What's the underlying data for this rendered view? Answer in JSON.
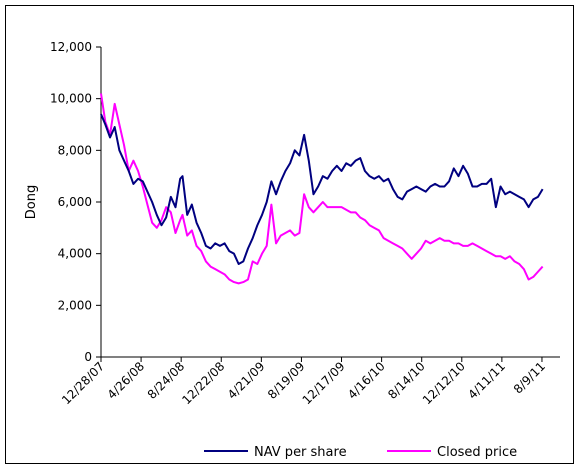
{
  "chart_data": {
    "type": "line",
    "ylabel": "Dong",
    "xlabel": "",
    "ylim": [
      0,
      12000
    ],
    "yticks": [
      0,
      2000,
      4000,
      6000,
      8000,
      10000,
      12000
    ],
    "ytick_labels": [
      "0",
      "2,000",
      "4,000",
      "6,000",
      "8,000",
      "10,000",
      "12,000"
    ],
    "xticks": [
      "12/28/07",
      "4/26/08",
      "8/24/08",
      "12/22/08",
      "4/21/09",
      "8/19/09",
      "12/17/09",
      "4/16/10",
      "8/14/10",
      "12/12/10",
      "4/11/11",
      "8/9/11"
    ],
    "xlim": [
      "12/28/07",
      "10/2/11"
    ],
    "grid": false,
    "legend_position": "bottom",
    "series": [
      {
        "name": "NAV per share",
        "color": "#000080",
        "points": [
          [
            "12/28/07",
            9400
          ],
          [
            "1/10/08",
            9000
          ],
          [
            "1/24/08",
            8500
          ],
          [
            "2/7/08",
            8900
          ],
          [
            "2/21/08",
            8000
          ],
          [
            "3/6/08",
            7600
          ],
          [
            "3/20/08",
            7200
          ],
          [
            "4/3/08",
            6700
          ],
          [
            "4/17/08",
            6900
          ],
          [
            "5/1/08",
            6800
          ],
          [
            "5/15/08",
            6400
          ],
          [
            "5/29/08",
            6000
          ],
          [
            "6/12/08",
            5500
          ],
          [
            "6/26/08",
            5100
          ],
          [
            "7/10/08",
            5400
          ],
          [
            "7/24/08",
            6200
          ],
          [
            "8/7/08",
            5800
          ],
          [
            "8/21/08",
            6900
          ],
          [
            "8/28/08",
            7000
          ],
          [
            "9/11/08",
            5500
          ],
          [
            "9/25/08",
            5900
          ],
          [
            "10/9/08",
            5200
          ],
          [
            "10/23/08",
            4800
          ],
          [
            "11/6/08",
            4300
          ],
          [
            "11/20/08",
            4200
          ],
          [
            "12/4/08",
            4400
          ],
          [
            "12/18/08",
            4300
          ],
          [
            "1/1/09",
            4400
          ],
          [
            "1/15/09",
            4100
          ],
          [
            "1/29/09",
            4000
          ],
          [
            "2/12/09",
            3600
          ],
          [
            "2/26/09",
            3700
          ],
          [
            "3/12/09",
            4200
          ],
          [
            "3/26/09",
            4600
          ],
          [
            "4/9/09",
            5100
          ],
          [
            "4/23/09",
            5500
          ],
          [
            "5/7/09",
            6000
          ],
          [
            "5/21/09",
            6800
          ],
          [
            "6/4/09",
            6300
          ],
          [
            "6/18/09",
            6800
          ],
          [
            "7/2/09",
            7200
          ],
          [
            "7/16/09",
            7500
          ],
          [
            "7/30/09",
            8000
          ],
          [
            "8/13/09",
            7800
          ],
          [
            "8/27/09",
            8600
          ],
          [
            "9/10/09",
            7600
          ],
          [
            "9/24/09",
            6300
          ],
          [
            "10/8/09",
            6600
          ],
          [
            "10/22/09",
            7000
          ],
          [
            "11/5/09",
            6900
          ],
          [
            "11/19/09",
            7200
          ],
          [
            "12/3/09",
            7400
          ],
          [
            "12/17/09",
            7200
          ],
          [
            "12/31/09",
            7500
          ],
          [
            "1/14/10",
            7400
          ],
          [
            "1/28/10",
            7600
          ],
          [
            "2/11/10",
            7700
          ],
          [
            "2/25/10",
            7200
          ],
          [
            "3/11/10",
            7000
          ],
          [
            "3/25/10",
            6900
          ],
          [
            "4/8/10",
            7000
          ],
          [
            "4/22/10",
            6800
          ],
          [
            "5/6/10",
            6900
          ],
          [
            "5/20/10",
            6500
          ],
          [
            "6/3/10",
            6200
          ],
          [
            "6/17/10",
            6100
          ],
          [
            "7/1/10",
            6400
          ],
          [
            "7/15/10",
            6500
          ],
          [
            "7/29/10",
            6600
          ],
          [
            "8/12/10",
            6500
          ],
          [
            "8/26/10",
            6400
          ],
          [
            "9/9/10",
            6600
          ],
          [
            "9/23/10",
            6700
          ],
          [
            "10/7/10",
            6600
          ],
          [
            "10/21/10",
            6600
          ],
          [
            "11/4/10",
            6800
          ],
          [
            "11/18/10",
            7300
          ],
          [
            "12/2/10",
            7000
          ],
          [
            "12/16/10",
            7400
          ],
          [
            "12/30/10",
            7100
          ],
          [
            "1/13/11",
            6600
          ],
          [
            "1/27/11",
            6600
          ],
          [
            "2/10/11",
            6700
          ],
          [
            "2/24/11",
            6700
          ],
          [
            "3/10/11",
            6900
          ],
          [
            "3/24/11",
            5800
          ],
          [
            "4/7/11",
            6600
          ],
          [
            "4/21/11",
            6300
          ],
          [
            "5/5/11",
            6400
          ],
          [
            "5/19/11",
            6300
          ],
          [
            "6/2/11",
            6200
          ],
          [
            "6/16/11",
            6100
          ],
          [
            "6/30/11",
            5800
          ],
          [
            "7/14/11",
            6100
          ],
          [
            "7/28/11",
            6200
          ],
          [
            "8/11/11",
            6500
          ]
        ]
      },
      {
        "name": "Closed price",
        "color": "#ff00ff",
        "points": [
          [
            "12/28/07",
            10200
          ],
          [
            "1/10/08",
            9100
          ],
          [
            "1/24/08",
            8600
          ],
          [
            "2/7/08",
            9800
          ],
          [
            "2/21/08",
            9000
          ],
          [
            "3/6/08",
            8200
          ],
          [
            "3/20/08",
            7200
          ],
          [
            "4/3/08",
            7600
          ],
          [
            "4/17/08",
            7200
          ],
          [
            "5/1/08",
            6600
          ],
          [
            "5/15/08",
            5900
          ],
          [
            "5/29/08",
            5200
          ],
          [
            "6/12/08",
            5000
          ],
          [
            "6/26/08",
            5300
          ],
          [
            "7/10/08",
            5800
          ],
          [
            "7/24/08",
            5600
          ],
          [
            "8/7/08",
            4800
          ],
          [
            "8/21/08",
            5300
          ],
          [
            "8/28/08",
            5500
          ],
          [
            "9/11/08",
            4700
          ],
          [
            "9/25/08",
            4900
          ],
          [
            "10/9/08",
            4300
          ],
          [
            "10/23/08",
            4100
          ],
          [
            "11/6/08",
            3700
          ],
          [
            "11/20/08",
            3500
          ],
          [
            "12/4/08",
            3400
          ],
          [
            "12/18/08",
            3300
          ],
          [
            "1/1/09",
            3200
          ],
          [
            "1/15/09",
            3000
          ],
          [
            "1/29/09",
            2900
          ],
          [
            "2/12/09",
            2850
          ],
          [
            "2/26/09",
            2900
          ],
          [
            "3/12/09",
            3000
          ],
          [
            "3/26/09",
            3700
          ],
          [
            "4/9/09",
            3600
          ],
          [
            "4/23/09",
            4000
          ],
          [
            "5/7/09",
            4300
          ],
          [
            "5/21/09",
            5900
          ],
          [
            "6/4/09",
            4400
          ],
          [
            "6/18/09",
            4700
          ],
          [
            "7/2/09",
            4800
          ],
          [
            "7/16/09",
            4900
          ],
          [
            "7/30/09",
            4700
          ],
          [
            "8/13/09",
            4800
          ],
          [
            "8/27/09",
            6300
          ],
          [
            "9/10/09",
            5800
          ],
          [
            "9/24/09",
            5600
          ],
          [
            "10/8/09",
            5800
          ],
          [
            "10/22/09",
            6000
          ],
          [
            "11/5/09",
            5800
          ],
          [
            "11/19/09",
            5800
          ],
          [
            "12/3/09",
            5800
          ],
          [
            "12/17/09",
            5800
          ],
          [
            "12/31/09",
            5700
          ],
          [
            "1/14/10",
            5600
          ],
          [
            "1/28/10",
            5600
          ],
          [
            "2/11/10",
            5400
          ],
          [
            "2/25/10",
            5300
          ],
          [
            "3/11/10",
            5100
          ],
          [
            "3/25/10",
            5000
          ],
          [
            "4/8/10",
            4900
          ],
          [
            "4/22/10",
            4600
          ],
          [
            "5/6/10",
            4500
          ],
          [
            "5/20/10",
            4400
          ],
          [
            "6/3/10",
            4300
          ],
          [
            "6/17/10",
            4200
          ],
          [
            "7/1/10",
            4000
          ],
          [
            "7/15/10",
            3800
          ],
          [
            "7/29/10",
            4000
          ],
          [
            "8/12/10",
            4200
          ],
          [
            "8/26/10",
            4500
          ],
          [
            "9/9/10",
            4400
          ],
          [
            "9/23/10",
            4500
          ],
          [
            "10/7/10",
            4600
          ],
          [
            "10/21/10",
            4500
          ],
          [
            "11/4/10",
            4500
          ],
          [
            "11/18/10",
            4400
          ],
          [
            "12/2/10",
            4400
          ],
          [
            "12/16/10",
            4300
          ],
          [
            "12/30/10",
            4300
          ],
          [
            "1/13/11",
            4400
          ],
          [
            "1/27/11",
            4300
          ],
          [
            "2/10/11",
            4200
          ],
          [
            "2/24/11",
            4100
          ],
          [
            "3/10/11",
            4000
          ],
          [
            "3/24/11",
            3900
          ],
          [
            "4/7/11",
            3900
          ],
          [
            "4/21/11",
            3800
          ],
          [
            "5/5/11",
            3900
          ],
          [
            "5/19/11",
            3700
          ],
          [
            "6/2/11",
            3600
          ],
          [
            "6/16/11",
            3400
          ],
          [
            "6/30/11",
            3000
          ],
          [
            "7/14/11",
            3100
          ],
          [
            "7/28/11",
            3300
          ],
          [
            "8/11/11",
            3500
          ]
        ]
      }
    ]
  }
}
